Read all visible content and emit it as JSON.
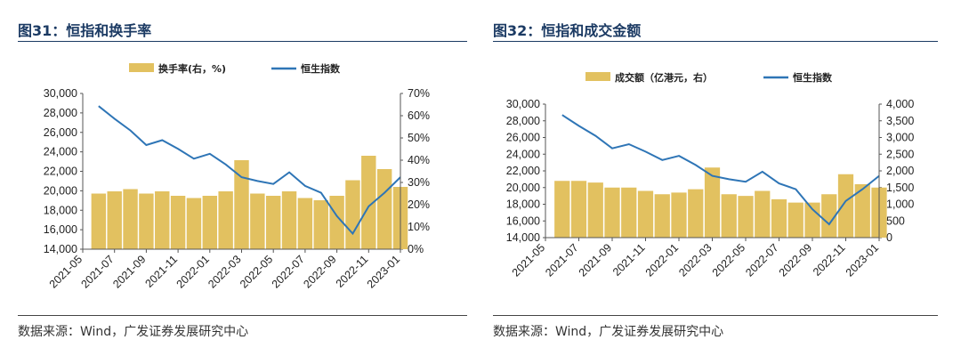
{
  "figures": [
    {
      "title": "图31：恒指和换手率",
      "source": "数据来源：Wind，广发证券发展研究中心",
      "legend": {
        "bar": "换手率(右，%)",
        "line": "恒生指数"
      }
    },
    {
      "title": "图32：恒指和成交金额",
      "source": "数据来源：Wind，广发证券发展研究中心",
      "legend": {
        "bar": "成交额（亿港元，右）",
        "line": "恒生指数"
      }
    }
  ],
  "colors": {
    "bar": "#E2C160",
    "line": "#2E75B6",
    "title": "#1b3a63"
  },
  "chart_data": [
    {
      "type": "bar+line",
      "x_ticks": [
        "2021-05",
        "2021-07",
        "2021-09",
        "2021-11",
        "2022-01",
        "2022-03",
        "2022-05",
        "2022-07",
        "2022-09",
        "2022-11",
        "2023-01"
      ],
      "left_axis": {
        "series": "恒生指数",
        "ylim": [
          14000,
          30000
        ],
        "ticks": [
          "30,000",
          "28,000",
          "26,000",
          "24,000",
          "22,000",
          "20,000",
          "18,000",
          "16,000",
          "14,000"
        ]
      },
      "right_axis": {
        "series": "换手率(右，%)",
        "ylim": [
          0,
          70
        ],
        "ticks": [
          "70%",
          "60%",
          "50%",
          "40%",
          "30%",
          "20%",
          "10%",
          "0%"
        ]
      },
      "line_months": [
        "2021-06",
        "2021-07",
        "2021-08",
        "2021-09",
        "2021-10",
        "2021-11",
        "2021-12",
        "2022-01",
        "2022-02",
        "2022-03",
        "2022-04",
        "2022-05",
        "2022-06",
        "2022-07",
        "2022-08",
        "2022-09",
        "2022-10",
        "2022-11",
        "2022-12",
        "2023-01"
      ],
      "line_values": [
        28700,
        27400,
        26200,
        24700,
        25200,
        24300,
        23300,
        23800,
        22700,
        21400,
        21000,
        20700,
        21900,
        20500,
        19800,
        17400,
        15600,
        18400,
        19800,
        21400
      ],
      "bar_months": [
        "2021-06",
        "2021-07",
        "2021-08",
        "2021-09",
        "2021-10",
        "2021-11",
        "2021-12",
        "2022-01",
        "2022-02",
        "2022-03",
        "2022-04",
        "2022-05",
        "2022-06",
        "2022-07",
        "2022-08",
        "2022-09",
        "2022-10",
        "2022-11",
        "2022-12",
        "2023-01"
      ],
      "bar_values": [
        25,
        26,
        27,
        25,
        26,
        24,
        23,
        24,
        26,
        40,
        25,
        24,
        26,
        23,
        22,
        24,
        31,
        42,
        36,
        28
      ]
    },
    {
      "type": "bar+line",
      "x_ticks": [
        "2021-05",
        "2021-07",
        "2021-09",
        "2021-11",
        "2022-01",
        "2022-03",
        "2022-05",
        "2022-07",
        "2022-09",
        "2022-11",
        "2023-01"
      ],
      "left_axis": {
        "series": "恒生指数",
        "ylim": [
          14000,
          30000
        ],
        "ticks": [
          "30,000",
          "28,000",
          "26,000",
          "24,000",
          "22,000",
          "20,000",
          "18,000",
          "16,000",
          "14,000"
        ]
      },
      "right_axis": {
        "series": "成交额（亿港元，右）",
        "ylim": [
          0,
          4000
        ],
        "ticks": [
          "4,000",
          "3,500",
          "3,000",
          "2,500",
          "2,000",
          "1,500",
          "1,000",
          "500",
          "0"
        ]
      },
      "line_months": [
        "2021-06",
        "2021-07",
        "2021-08",
        "2021-09",
        "2021-10",
        "2021-11",
        "2021-12",
        "2022-01",
        "2022-02",
        "2022-03",
        "2022-04",
        "2022-05",
        "2022-06",
        "2022-07",
        "2022-08",
        "2022-09",
        "2022-10",
        "2022-11",
        "2022-12",
        "2023-01"
      ],
      "line_values": [
        28700,
        27400,
        26200,
        24700,
        25200,
        24300,
        23300,
        23800,
        22700,
        21400,
        21000,
        20700,
        21900,
        20500,
        19800,
        17400,
        15600,
        18400,
        19800,
        21400
      ],
      "bar_months": [
        "2021-06",
        "2021-07",
        "2021-08",
        "2021-09",
        "2021-10",
        "2021-11",
        "2021-12",
        "2022-01",
        "2022-02",
        "2022-03",
        "2022-04",
        "2022-05",
        "2022-06",
        "2022-07",
        "2022-08",
        "2022-09",
        "2022-10",
        "2022-11",
        "2022-12",
        "2023-01"
      ],
      "bar_values": [
        1700,
        1700,
        1650,
        1500,
        1500,
        1400,
        1300,
        1350,
        1450,
        2100,
        1300,
        1250,
        1400,
        1150,
        1050,
        1050,
        1300,
        1900,
        1600,
        1500
      ]
    }
  ]
}
